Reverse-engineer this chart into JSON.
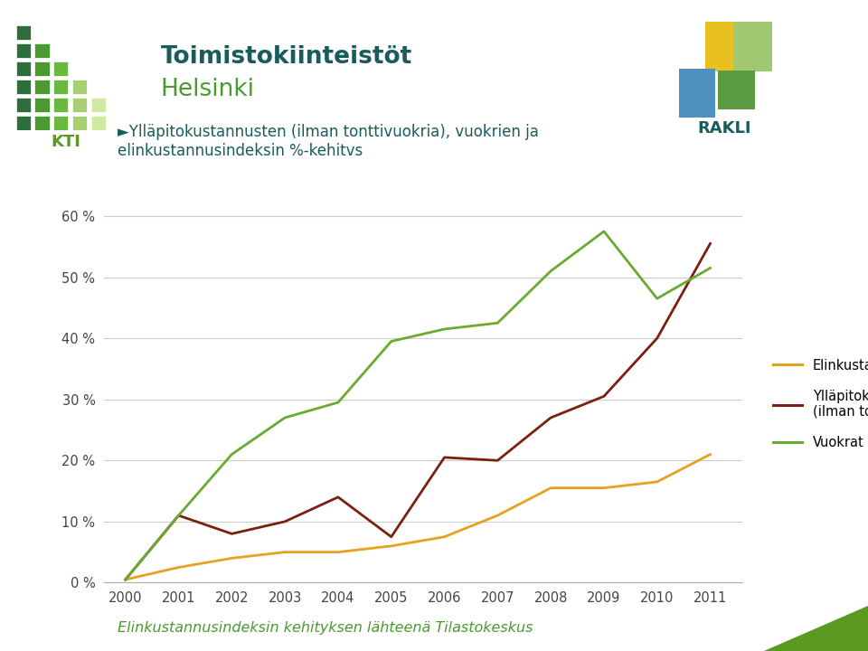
{
  "years": [
    2000,
    2001,
    2002,
    2003,
    2004,
    2005,
    2006,
    2007,
    2008,
    2009,
    2010,
    2011
  ],
  "elinkustannusindeksi": [
    0.5,
    2.5,
    4.0,
    5.0,
    5.0,
    6.0,
    7.5,
    11.0,
    15.5,
    15.5,
    16.5,
    21.0
  ],
  "yllapitokustannukset": [
    0.5,
    11.0,
    8.0,
    10.0,
    14.0,
    7.5,
    20.5,
    20.0,
    27.0,
    30.5,
    40.0,
    55.5
  ],
  "vuokrat": [
    0.5,
    11.0,
    21.0,
    27.0,
    29.5,
    39.5,
    41.5,
    42.5,
    51.0,
    57.5,
    46.5,
    51.5
  ],
  "elinkustannusindeksi_color": "#E8A020",
  "yllapitokustannukset_color": "#7B2010",
  "vuokrat_color": "#6AAA30",
  "bg_color": "#FFFFFF",
  "green_bar_color": "#5A9A20",
  "title_line1": "Toimistokiinteistöt",
  "title_line2": "Helsinki",
  "title_line1_color": "#1A5C5C",
  "title_line2_color": "#4A9A30",
  "chart_title_line1": "►Ylläpitokustannusten (ilman tonttivuokria), vuokrien ja",
  "chart_title_line2": "elinkustannusindeksin %-kehitvs",
  "chart_title_color": "#1A5C5C",
  "legend_labels": [
    "Elinkustannusindeksi",
    "Ylläpitokustannukset\n(ilman tonttivuokria)",
    "Vuokrat"
  ],
  "footer_text": "Elinkustannusindeksin kehityksen lähteenä Tilastokeskus",
  "footer_color": "#4A9A30",
  "ylim": [
    0,
    65
  ],
  "yticks": [
    0,
    10,
    20,
    30,
    40,
    50,
    60
  ],
  "rakli_color": "#1A5C5C"
}
